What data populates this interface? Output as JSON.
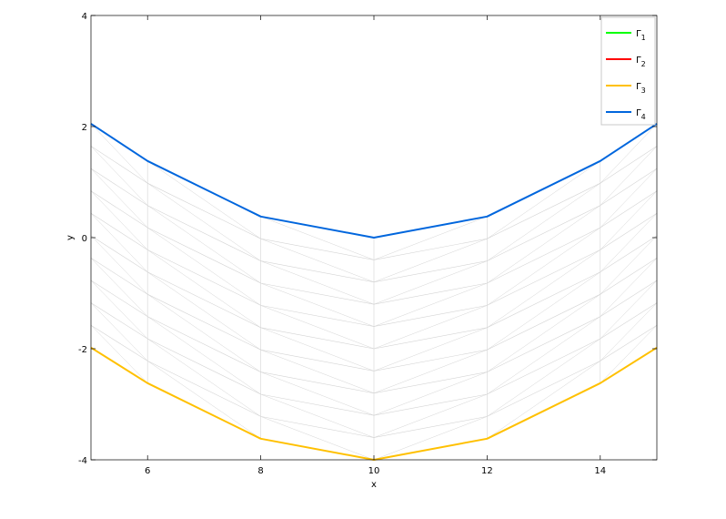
{
  "chart_data": {
    "type": "line",
    "xlabel": "x",
    "ylabel": "y",
    "xlim": [
      5,
      15
    ],
    "ylim": [
      -4,
      4
    ],
    "xticks": [
      6,
      8,
      10,
      12,
      14
    ],
    "xtick_labels": [
      "6",
      "8",
      "10",
      "12",
      "14"
    ],
    "yticks": [
      -4,
      -2,
      0,
      2,
      4
    ],
    "ytick_labels": [
      "-4",
      "-2",
      "0",
      "2",
      "4"
    ],
    "legend_position": "top-right",
    "grid": false,
    "mesh_color": "#d4d4d4",
    "x": [
      5,
      6,
      8,
      10,
      12,
      14,
      15
    ],
    "series": [
      {
        "name": "Γ",
        "subscript": "1",
        "color": "#00ff00",
        "values": [
          null,
          null,
          null,
          null,
          null,
          null,
          null
        ]
      },
      {
        "name": "Γ",
        "subscript": "2",
        "color": "#ff0000",
        "values": [
          null,
          null,
          null,
          null,
          null,
          null,
          null
        ]
      },
      {
        "name": "Γ",
        "subscript": "3",
        "color": "#ffc000",
        "values": [
          -1.98,
          -2.62,
          -3.62,
          -4.0,
          -3.62,
          -2.62,
          -1.98
        ]
      },
      {
        "name": "Γ",
        "subscript": "4",
        "color": "#0066dd",
        "values": [
          2.05,
          1.38,
          0.38,
          0.0,
          0.38,
          1.38,
          2.05
        ]
      }
    ],
    "mesh": {
      "columns": [
        6,
        8,
        10,
        12,
        14
      ],
      "levels": 10
    }
  }
}
